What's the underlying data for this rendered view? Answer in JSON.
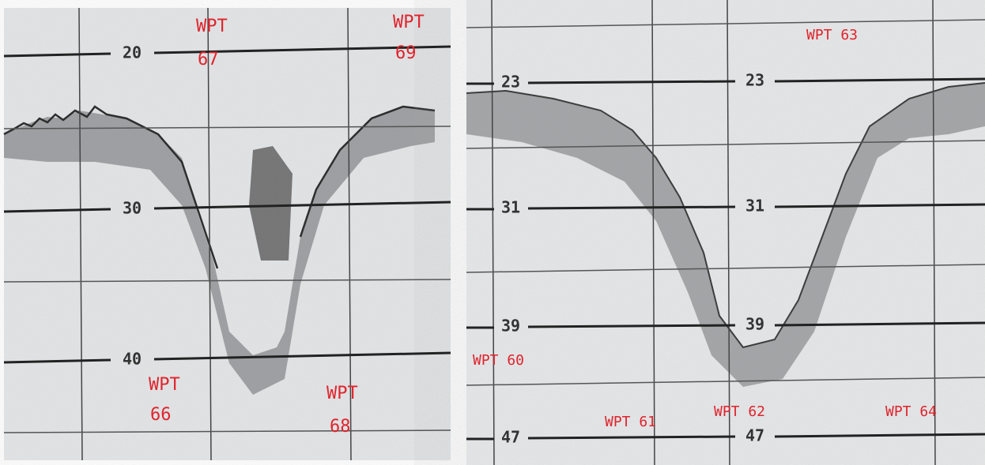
{
  "panels": [
    {
      "depth_labels": [
        "20",
        "30",
        "40"
      ],
      "waypoints": [
        {
          "label": "WPT",
          "number": "67"
        },
        {
          "label": "WPT",
          "number": "69"
        },
        {
          "label": "WPT",
          "number": "66"
        },
        {
          "label": "WPT",
          "number": "68"
        }
      ]
    },
    {
      "depth_labels": [
        "23",
        "31",
        "39",
        "47"
      ],
      "waypoints": [
        "WPT 63",
        "WPT 60",
        "WPT 61",
        "WPT 62",
        "WPT 64"
      ]
    }
  ]
}
